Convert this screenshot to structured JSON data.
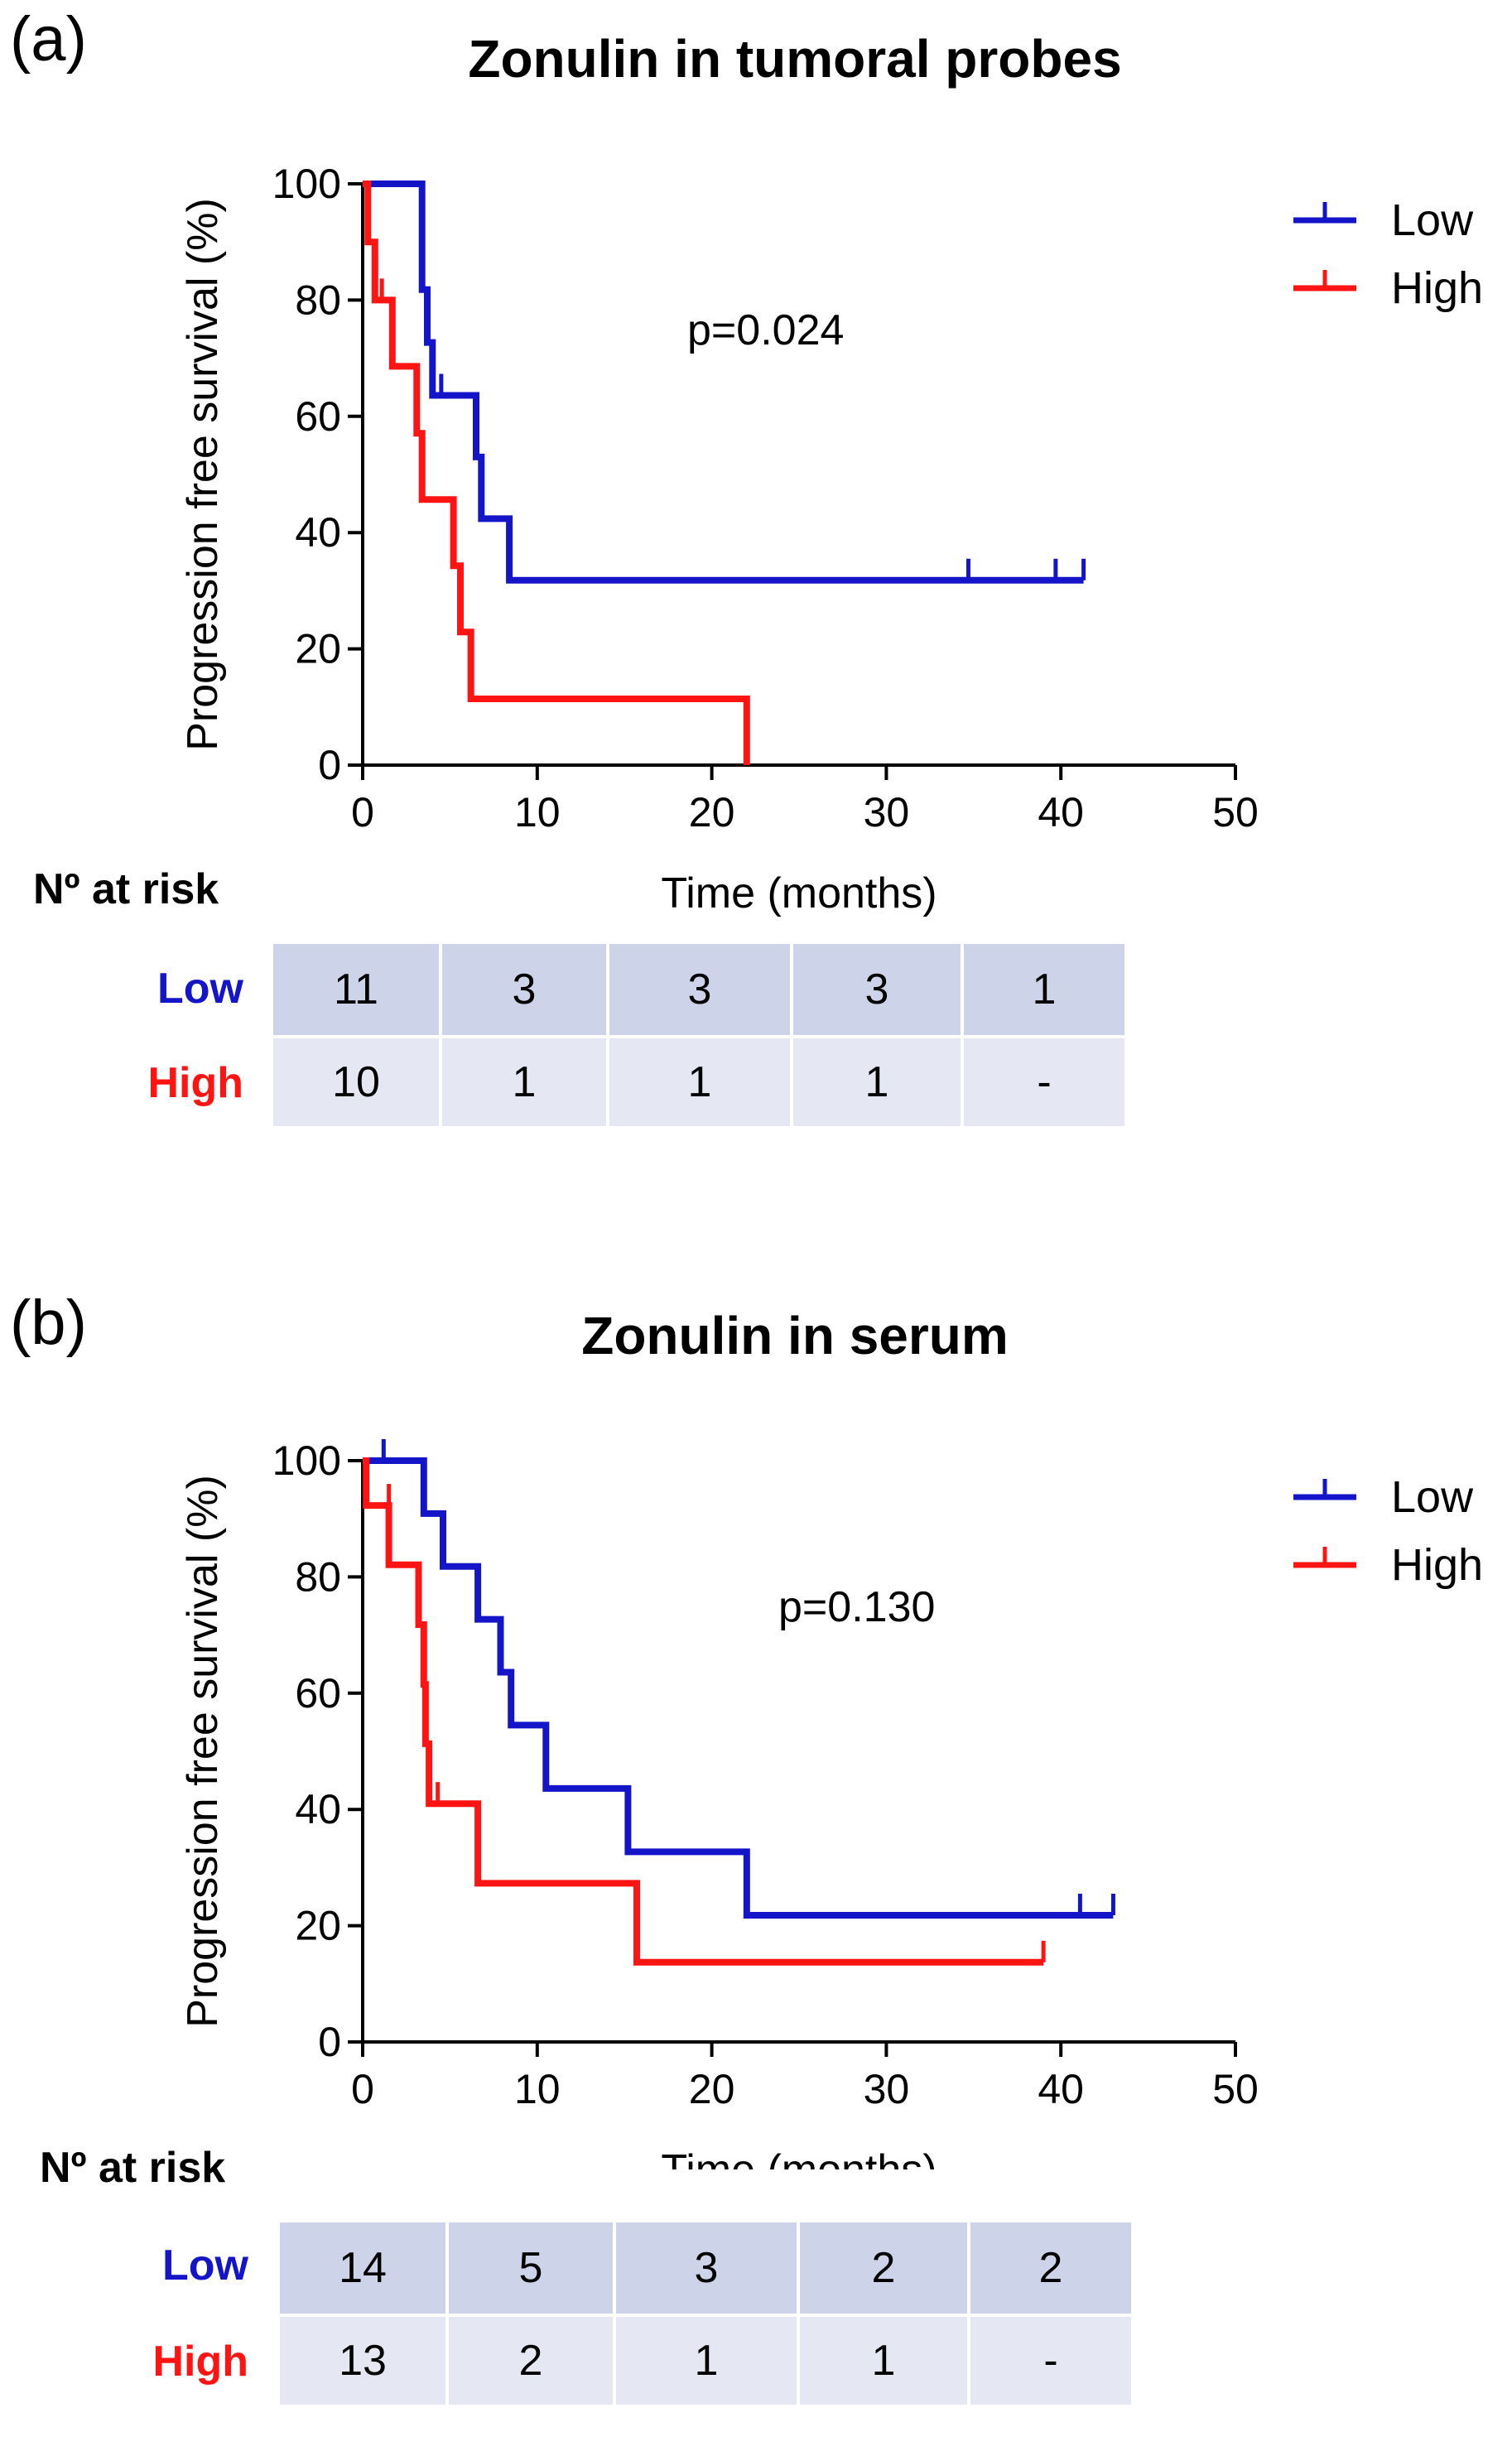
{
  "colors": {
    "low": "#1414c8",
    "high": "#ff1414",
    "axis": "#000000"
  },
  "panels": [
    {
      "label": "(a)",
      "title": "Zonulin in tumoral probes",
      "p_value": "p=0.024",
      "legend": [
        "Low",
        "High"
      ],
      "risk": {
        "heading": "Nº at risk",
        "low_label": "Low",
        "high_label": "High",
        "low": [
          "11",
          "3",
          "3",
          "3",
          "1"
        ],
        "high": [
          "10",
          "1",
          "1",
          "1",
          "-"
        ]
      }
    },
    {
      "label": "(b)",
      "title": "Zonulin in serum",
      "p_value": "p=0.130",
      "legend": [
        "Low",
        "High"
      ],
      "risk": {
        "heading": "Nº at risk",
        "low_label": "Low",
        "high_label": "High",
        "low": [
          "14",
          "5",
          "3",
          "2",
          "2"
        ],
        "high": [
          "13",
          "2",
          "1",
          "1",
          "-"
        ]
      }
    }
  ],
  "chart_data": [
    {
      "type": "line",
      "step": true,
      "title": "Zonulin in tumoral probes",
      "xlabel": "Time (months)",
      "ylabel": "Progression free survival (%)",
      "xlim": [
        0,
        50
      ],
      "ylim": [
        0,
        100
      ],
      "xticks": [
        0,
        10,
        20,
        30,
        40,
        50
      ],
      "yticks": [
        0,
        20,
        40,
        60,
        80,
        100
      ],
      "legend_position": "top-right",
      "series": [
        {
          "name": "Low",
          "color": "#1414c8",
          "steps": [
            [
              0,
              100
            ],
            [
              3.4,
              100
            ],
            [
              3.4,
              81.8
            ],
            [
              3.7,
              81.8
            ],
            [
              3.7,
              72.7
            ],
            [
              4,
              72.7
            ],
            [
              4,
              63.6
            ],
            [
              6.5,
              63.6
            ],
            [
              6.5,
              53
            ],
            [
              6.8,
              53
            ],
            [
              6.8,
              42.4
            ],
            [
              8.4,
              42.4
            ],
            [
              8.4,
              31.8
            ],
            [
              41.3,
              31.8
            ]
          ],
          "censored": [
            [
              4.5,
              63.6
            ],
            [
              34.7,
              31.8
            ],
            [
              39.7,
              31.8
            ],
            [
              41.3,
              31.8
            ]
          ]
        },
        {
          "name": "High",
          "color": "#ff1414",
          "steps": [
            [
              0,
              100
            ],
            [
              0.3,
              100
            ],
            [
              0.3,
              90
            ],
            [
              0.7,
              90
            ],
            [
              0.7,
              80
            ],
            [
              1.7,
              80
            ],
            [
              1.7,
              68.6
            ],
            [
              3.1,
              68.6
            ],
            [
              3.1,
              57.1
            ],
            [
              3.4,
              57.1
            ],
            [
              3.4,
              45.7
            ],
            [
              5.2,
              45.7
            ],
            [
              5.2,
              34.3
            ],
            [
              5.6,
              34.3
            ],
            [
              5.6,
              22.9
            ],
            [
              6.2,
              22.9
            ],
            [
              6.2,
              11.4
            ],
            [
              22,
              11.4
            ],
            [
              22,
              0
            ]
          ],
          "censored": [
            [
              1.1,
              80
            ]
          ]
        }
      ]
    },
    {
      "type": "line",
      "step": true,
      "title": "Zonulin in serum",
      "xlabel": "Time (months)",
      "ylabel": "Progression free survival (%)",
      "xlim": [
        0,
        50
      ],
      "ylim": [
        0,
        100
      ],
      "xticks": [
        0,
        10,
        20,
        30,
        40,
        50
      ],
      "yticks": [
        0,
        20,
        40,
        60,
        80,
        100
      ],
      "legend_position": "top-right",
      "series": [
        {
          "name": "Low",
          "color": "#1414c8",
          "steps": [
            [
              0,
              100
            ],
            [
              3.5,
              100
            ],
            [
              3.5,
              90.9
            ],
            [
              4.6,
              90.9
            ],
            [
              4.6,
              81.8
            ],
            [
              6.6,
              81.8
            ],
            [
              6.6,
              72.7
            ],
            [
              7.9,
              72.7
            ],
            [
              7.9,
              63.6
            ],
            [
              8.5,
              63.6
            ],
            [
              8.5,
              54.5
            ],
            [
              10.5,
              54.5
            ],
            [
              10.5,
              43.6
            ],
            [
              15.2,
              43.6
            ],
            [
              15.2,
              32.7
            ],
            [
              22,
              32.7
            ],
            [
              22,
              21.8
            ],
            [
              43,
              21.8
            ]
          ],
          "censored": [
            [
              1.2,
              100
            ],
            [
              41.1,
              21.8
            ],
            [
              43,
              21.8
            ]
          ]
        },
        {
          "name": "High",
          "color": "#ff1414",
          "steps": [
            [
              0,
              100
            ],
            [
              0.2,
              100
            ],
            [
              0.2,
              92.3
            ],
            [
              1.5,
              92.3
            ],
            [
              1.5,
              82.1
            ],
            [
              3.2,
              82.1
            ],
            [
              3.2,
              71.8
            ],
            [
              3.5,
              71.8
            ],
            [
              3.5,
              61.5
            ],
            [
              3.6,
              61.5
            ],
            [
              3.6,
              51.3
            ],
            [
              3.8,
              51.3
            ],
            [
              3.8,
              41
            ],
            [
              6.6,
              41
            ],
            [
              6.6,
              27.3
            ],
            [
              15.7,
              27.3
            ],
            [
              15.7,
              13.7
            ],
            [
              39,
              13.7
            ]
          ],
          "censored": [
            [
              1.5,
              92.3
            ],
            [
              4.3,
              41
            ],
            [
              39,
              13.7
            ]
          ]
        }
      ]
    }
  ]
}
